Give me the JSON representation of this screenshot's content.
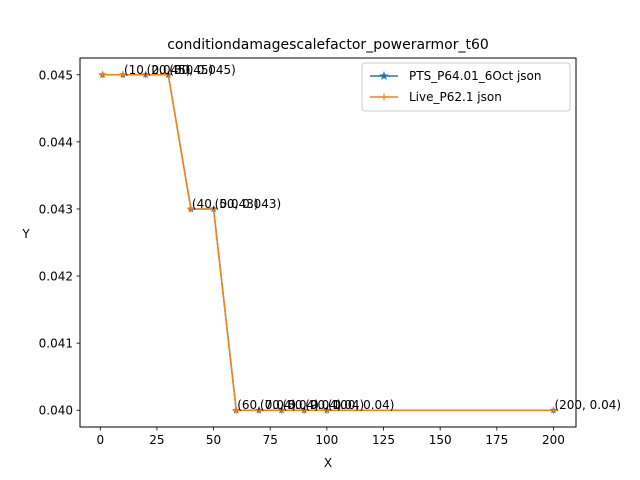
{
  "chart_data": {
    "type": "line",
    "title": "conditiondamagescalefactor_powerarmor_t60",
    "xlabel": "X",
    "ylabel": "Y",
    "xlim": [
      -8.95,
      209.95
    ],
    "ylim": [
      0.03975,
      0.04525
    ],
    "xticks": [
      0,
      25,
      50,
      75,
      100,
      125,
      150,
      175,
      200
    ],
    "yticks": [
      0.04,
      0.041,
      0.042,
      0.043,
      0.044,
      0.045
    ],
    "ytick_labels": [
      "0.040",
      "0.041",
      "0.042",
      "0.043",
      "0.044",
      "0.045"
    ],
    "grid": false,
    "legend_position": "upper right",
    "series": [
      {
        "name": "PTS_P64.01_6Oct json",
        "color": "#1f77b4",
        "marker": "star",
        "x": [
          1,
          10,
          20,
          30,
          40,
          50,
          60,
          70,
          80,
          90,
          100,
          200
        ],
        "y": [
          0.045,
          0.045,
          0.045,
          0.045,
          0.043,
          0.043,
          0.04,
          0.04,
          0.04,
          0.04,
          0.04,
          0.04
        ]
      },
      {
        "name": "Live_P62.1 json",
        "color": "#ff7f0e",
        "marker": "plus",
        "x": [
          1,
          10,
          20,
          30,
          40,
          50,
          60,
          70,
          80,
          90,
          100,
          200
        ],
        "y": [
          0.045,
          0.045,
          0.045,
          0.045,
          0.043,
          0.043,
          0.04,
          0.04,
          0.04,
          0.04,
          0.04,
          0.04
        ]
      }
    ],
    "annotations": [
      {
        "text": "(10, 0.045)",
        "x": 10,
        "y": 0.045
      },
      {
        "text": "(20, 0.045)",
        "x": 20,
        "y": 0.045
      },
      {
        "text": "(30, 0.045)",
        "x": 30,
        "y": 0.045
      },
      {
        "text": "(40, 0.043)",
        "x": 40,
        "y": 0.043
      },
      {
        "text": "(50, 0.043)",
        "x": 50,
        "y": 0.043
      },
      {
        "text": "(60, 0.04)",
        "x": 60,
        "y": 0.04
      },
      {
        "text": "(70, 0.04)",
        "x": 70,
        "y": 0.04
      },
      {
        "text": "(80, 0.04)",
        "x": 80,
        "y": 0.04
      },
      {
        "text": "(90, 0.04)",
        "x": 90,
        "y": 0.04
      },
      {
        "text": "(100, 0.04)",
        "x": 100,
        "y": 0.04
      },
      {
        "text": "(200, 0.04)",
        "x": 200,
        "y": 0.04
      }
    ]
  }
}
